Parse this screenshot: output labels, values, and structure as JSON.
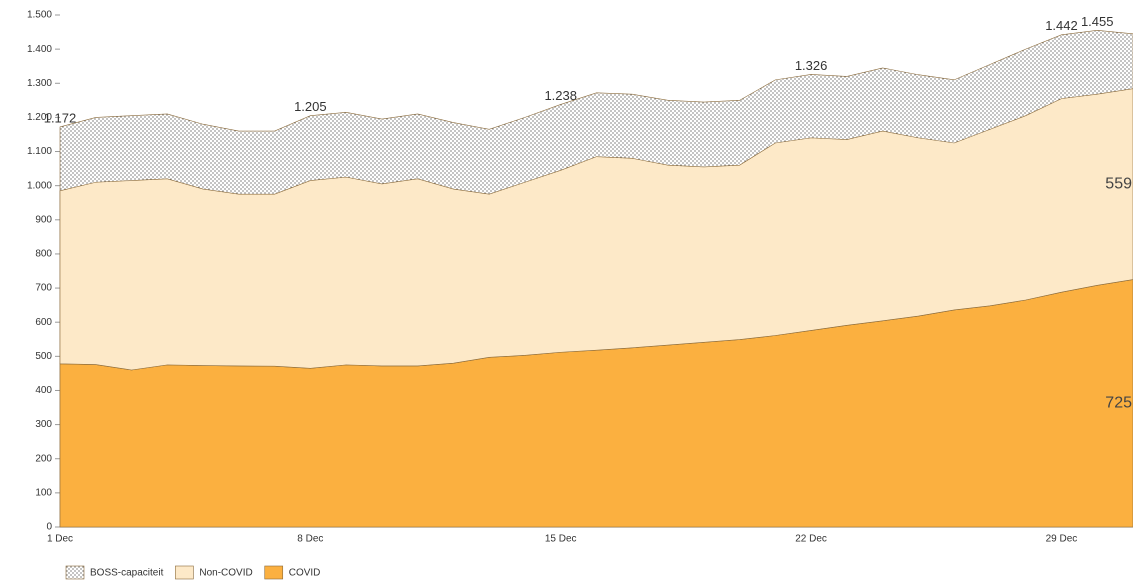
{
  "chart_data": {
    "type": "area",
    "categories": [
      "1 Dec",
      null,
      null,
      null,
      null,
      null,
      null,
      "8 Dec",
      null,
      null,
      null,
      null,
      null,
      null,
      "15 Dec",
      null,
      null,
      null,
      null,
      null,
      null,
      "22 Dec",
      null,
      null,
      null,
      null,
      null,
      null,
      "29 Dec",
      null,
      null
    ],
    "series": [
      {
        "name": "BOSS-capaciteit",
        "color": "#ffffff",
        "pattern": "dots",
        "stacked": false,
        "values": [
          1172,
          1200,
          1205,
          1210,
          1180,
          1160,
          1160,
          1205,
          1215,
          1195,
          1210,
          1185,
          1165,
          1200,
          1238,
          1272,
          1268,
          1250,
          1245,
          1250,
          1310,
          1326,
          1320,
          1345,
          1325,
          1310,
          1355,
          1400,
          1442,
          1455,
          1445
        ],
        "value_labels": [
          "1.172",
          null,
          null,
          null,
          null,
          null,
          null,
          "1.205",
          null,
          null,
          null,
          null,
          null,
          null,
          "1.238",
          null,
          null,
          null,
          null,
          null,
          null,
          "1.326",
          null,
          null,
          null,
          null,
          null,
          null,
          "1.442",
          "1.455",
          null
        ]
      },
      {
        "name": "Non-COVID",
        "color": "#fde9c8",
        "stacked": true,
        "values": [
          507,
          534,
          555,
          545,
          517,
          503,
          504,
          550,
          550,
          533,
          548,
          510,
          478,
          507,
          533,
          567,
          555,
          527,
          514,
          511,
          564,
          564,
          544,
          556,
          522,
          489,
          517,
          540,
          567,
          560,
          559
        ],
        "value_labels": [
          null,
          null,
          null,
          null,
          null,
          null,
          null,
          null,
          null,
          null,
          null,
          null,
          null,
          null,
          null,
          null,
          null,
          null,
          null,
          null,
          null,
          null,
          null,
          null,
          null,
          null,
          null,
          null,
          null,
          null,
          "559"
        ]
      },
      {
        "name": "COVID",
        "color": "#fbb040",
        "stacked": true,
        "values": [
          478,
          476,
          460,
          475,
          473,
          472,
          471,
          465,
          475,
          472,
          472,
          480,
          497,
          503,
          512,
          518,
          525,
          533,
          541,
          549,
          561,
          576,
          591,
          604,
          618,
          636,
          648,
          665,
          688,
          708,
          725
        ],
        "value_labels": [
          null,
          null,
          null,
          null,
          null,
          null,
          null,
          null,
          null,
          null,
          null,
          null,
          null,
          null,
          null,
          null,
          null,
          null,
          null,
          null,
          null,
          null,
          null,
          null,
          null,
          null,
          null,
          null,
          null,
          null,
          "725"
        ]
      }
    ],
    "ylim": [
      0,
      1500
    ],
    "yticks": [
      0,
      100,
      200,
      300,
      400,
      500,
      600,
      700,
      800,
      900,
      {
        "value": 1000,
        "label": "1.000"
      },
      {
        "value": 1100,
        "label": "1.100"
      },
      {
        "value": 1200,
        "label": "1.200"
      },
      {
        "value": 1300,
        "label": "1.300"
      },
      {
        "value": 1400,
        "label": "1.400"
      },
      {
        "value": 1500,
        "label": "1.500"
      }
    ],
    "legend": "bottom-left"
  }
}
